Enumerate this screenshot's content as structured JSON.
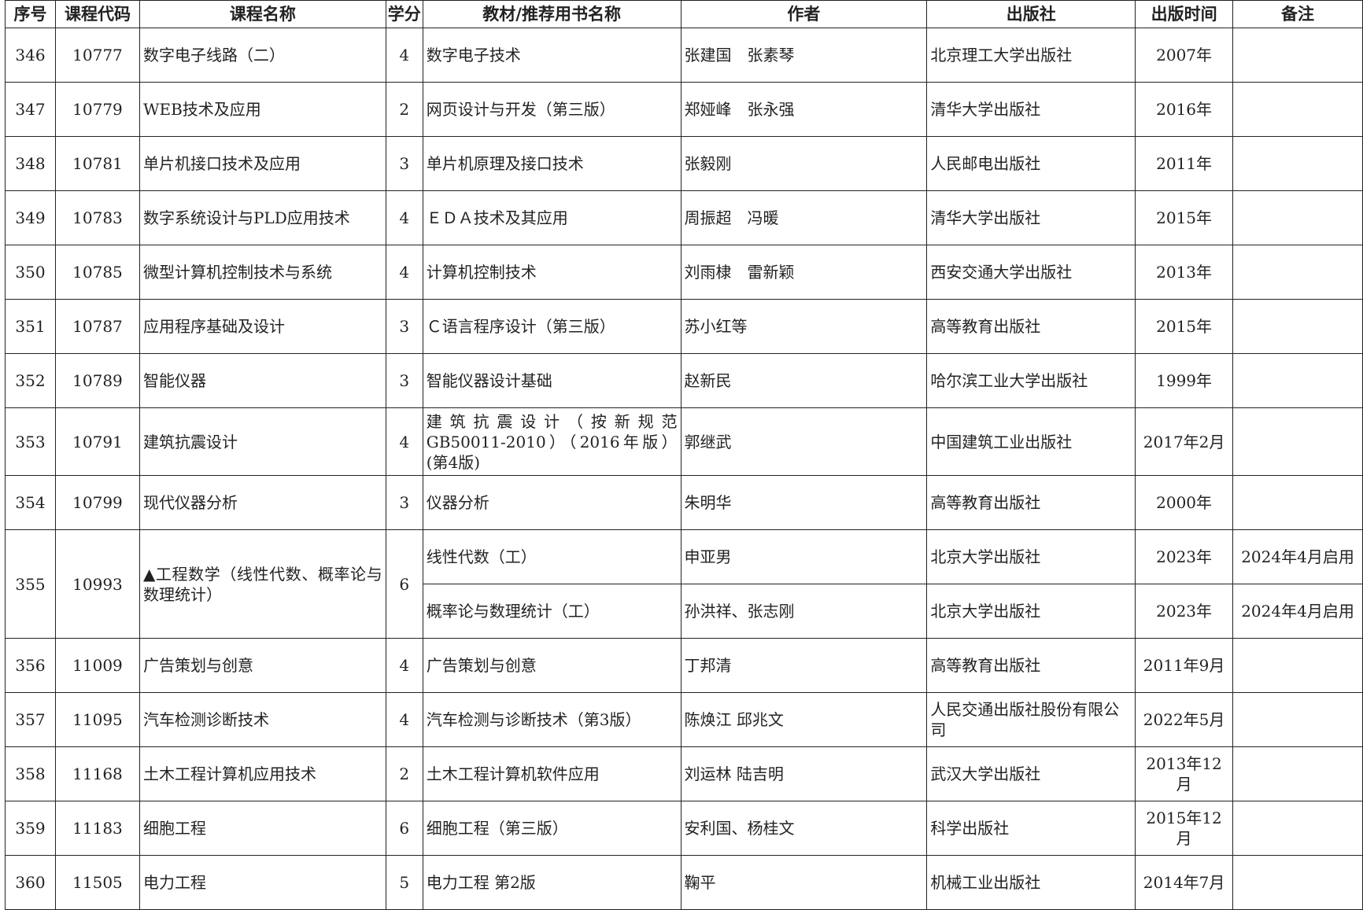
{
  "headers": [
    "序号",
    "课程代码",
    "课程名称",
    "学分",
    "教材/推荐用书名称",
    "作者",
    "出版社",
    "出版时间",
    "备注"
  ],
  "rows": [
    {
      "no": "346",
      "code": "10777",
      "course": "数字电子线路（二）",
      "credit": "4",
      "books": [
        {
          "title": "数字电子技术",
          "author": "张建国　张素琴",
          "publisher": "北京理工大学出版社",
          "date": "2007年",
          "note": ""
        }
      ]
    },
    {
      "no": "347",
      "code": "10779",
      "course": "WEB技术及应用",
      "credit": "2",
      "books": [
        {
          "title": "网页设计与开发（第三版）",
          "author": "郑娅峰　张永强",
          "publisher": "清华大学出版社",
          "date": "2016年",
          "note": ""
        }
      ]
    },
    {
      "no": "348",
      "code": "10781",
      "course": "单片机接口技术及应用",
      "credit": "3",
      "books": [
        {
          "title": "单片机原理及接口技术",
          "author": "张毅刚",
          "publisher": "人民邮电出版社",
          "date": "2011年",
          "note": ""
        }
      ]
    },
    {
      "no": "349",
      "code": "10783",
      "course": "数字系统设计与PLD应用技术",
      "credit": "4",
      "books": [
        {
          "title": "ＥＤＡ技术及其应用",
          "author": "周振超　冯暖",
          "publisher": "清华大学出版社",
          "date": "2015年",
          "note": ""
        }
      ]
    },
    {
      "no": "350",
      "code": "10785",
      "course": "微型计算机控制技术与系统",
      "credit": "4",
      "books": [
        {
          "title": "计算机控制技术",
          "author": "刘雨棣　雷新颖",
          "publisher": "西安交通大学出版社",
          "date": "2013年",
          "note": ""
        }
      ]
    },
    {
      "no": "351",
      "code": "10787",
      "course": "应用程序基础及设计",
      "credit": "3",
      "books": [
        {
          "title": "Ｃ语言程序设计（第三版）",
          "author": "苏小红等",
          "publisher": "高等教育出版社",
          "date": "2015年",
          "note": ""
        }
      ]
    },
    {
      "no": "352",
      "code": "10789",
      "course": "智能仪器",
      "credit": "3",
      "books": [
        {
          "title": "智能仪器设计基础",
          "author": "赵新民",
          "publisher": "哈尔滨工业大学出版社",
          "date": "1999年",
          "note": ""
        }
      ]
    },
    {
      "no": "353",
      "code": "10791",
      "course": "建筑抗震设计",
      "credit": "4",
      "books": [
        {
          "title": "建筑抗震设计（按新规范GB50011-2010）（2016年版）(第4版)",
          "author": "郭继武",
          "publisher": "中国建筑工业出版社",
          "date": "2017年2月",
          "note": ""
        }
      ]
    },
    {
      "no": "354",
      "code": "10799",
      "course": "现代仪器分析",
      "credit": "3",
      "books": [
        {
          "title": "仪器分析",
          "author": "朱明华",
          "publisher": "高等教育出版社",
          "date": "2000年",
          "note": ""
        }
      ]
    },
    {
      "no": "355",
      "code": "10993",
      "course": "▲工程数学（线性代数、概率论与数理统计）",
      "credit": "6",
      "books": [
        {
          "title": "线性代数（工）",
          "author": "申亚男",
          "publisher": "北京大学出版社",
          "date": "2023年",
          "note": "2024年4月启用"
        },
        {
          "title": "概率论与数理统计（工）",
          "author": "孙洪祥、张志刚",
          "publisher": "北京大学出版社",
          "date": "2023年",
          "note": "2024年4月启用"
        }
      ]
    },
    {
      "no": "356",
      "code": "11009",
      "course": "广告策划与创意",
      "credit": "4",
      "books": [
        {
          "title": "广告策划与创意",
          "author": "丁邦清",
          "publisher": "高等教育出版社",
          "date": "2011年9月",
          "note": ""
        }
      ]
    },
    {
      "no": "357",
      "code": "11095",
      "course": "汽车检测诊断技术",
      "credit": "4",
      "books": [
        {
          "title": "汽车检测与诊断技术（第3版）",
          "author": "陈焕江  邱兆文",
          "publisher": "人民交通出版社股份有限公司",
          "date": "2022年5月",
          "note": ""
        }
      ]
    },
    {
      "no": "358",
      "code": "11168",
      "course": "土木工程计算机应用技术",
      "credit": "2",
      "books": [
        {
          "title": "土木工程计算机软件应用",
          "author": "刘运林  陆吉明",
          "publisher": "武汉大学出版社",
          "date": "2013年12月",
          "note": ""
        }
      ]
    },
    {
      "no": "359",
      "code": "11183",
      "course": "细胞工程",
      "credit": "6",
      "books": [
        {
          "title": "细胞工程（第三版）",
          "author": "安利国、杨桂文",
          "publisher": "科学出版社",
          "date": "2015年12月",
          "note": ""
        }
      ]
    },
    {
      "no": "360",
      "code": "11505",
      "course": "电力工程",
      "credit": "5",
      "books": [
        {
          "title": "电力工程  第2版",
          "author": "鞠平",
          "publisher": "机械工业出版社",
          "date": "2014年7月",
          "note": ""
        }
      ]
    }
  ]
}
